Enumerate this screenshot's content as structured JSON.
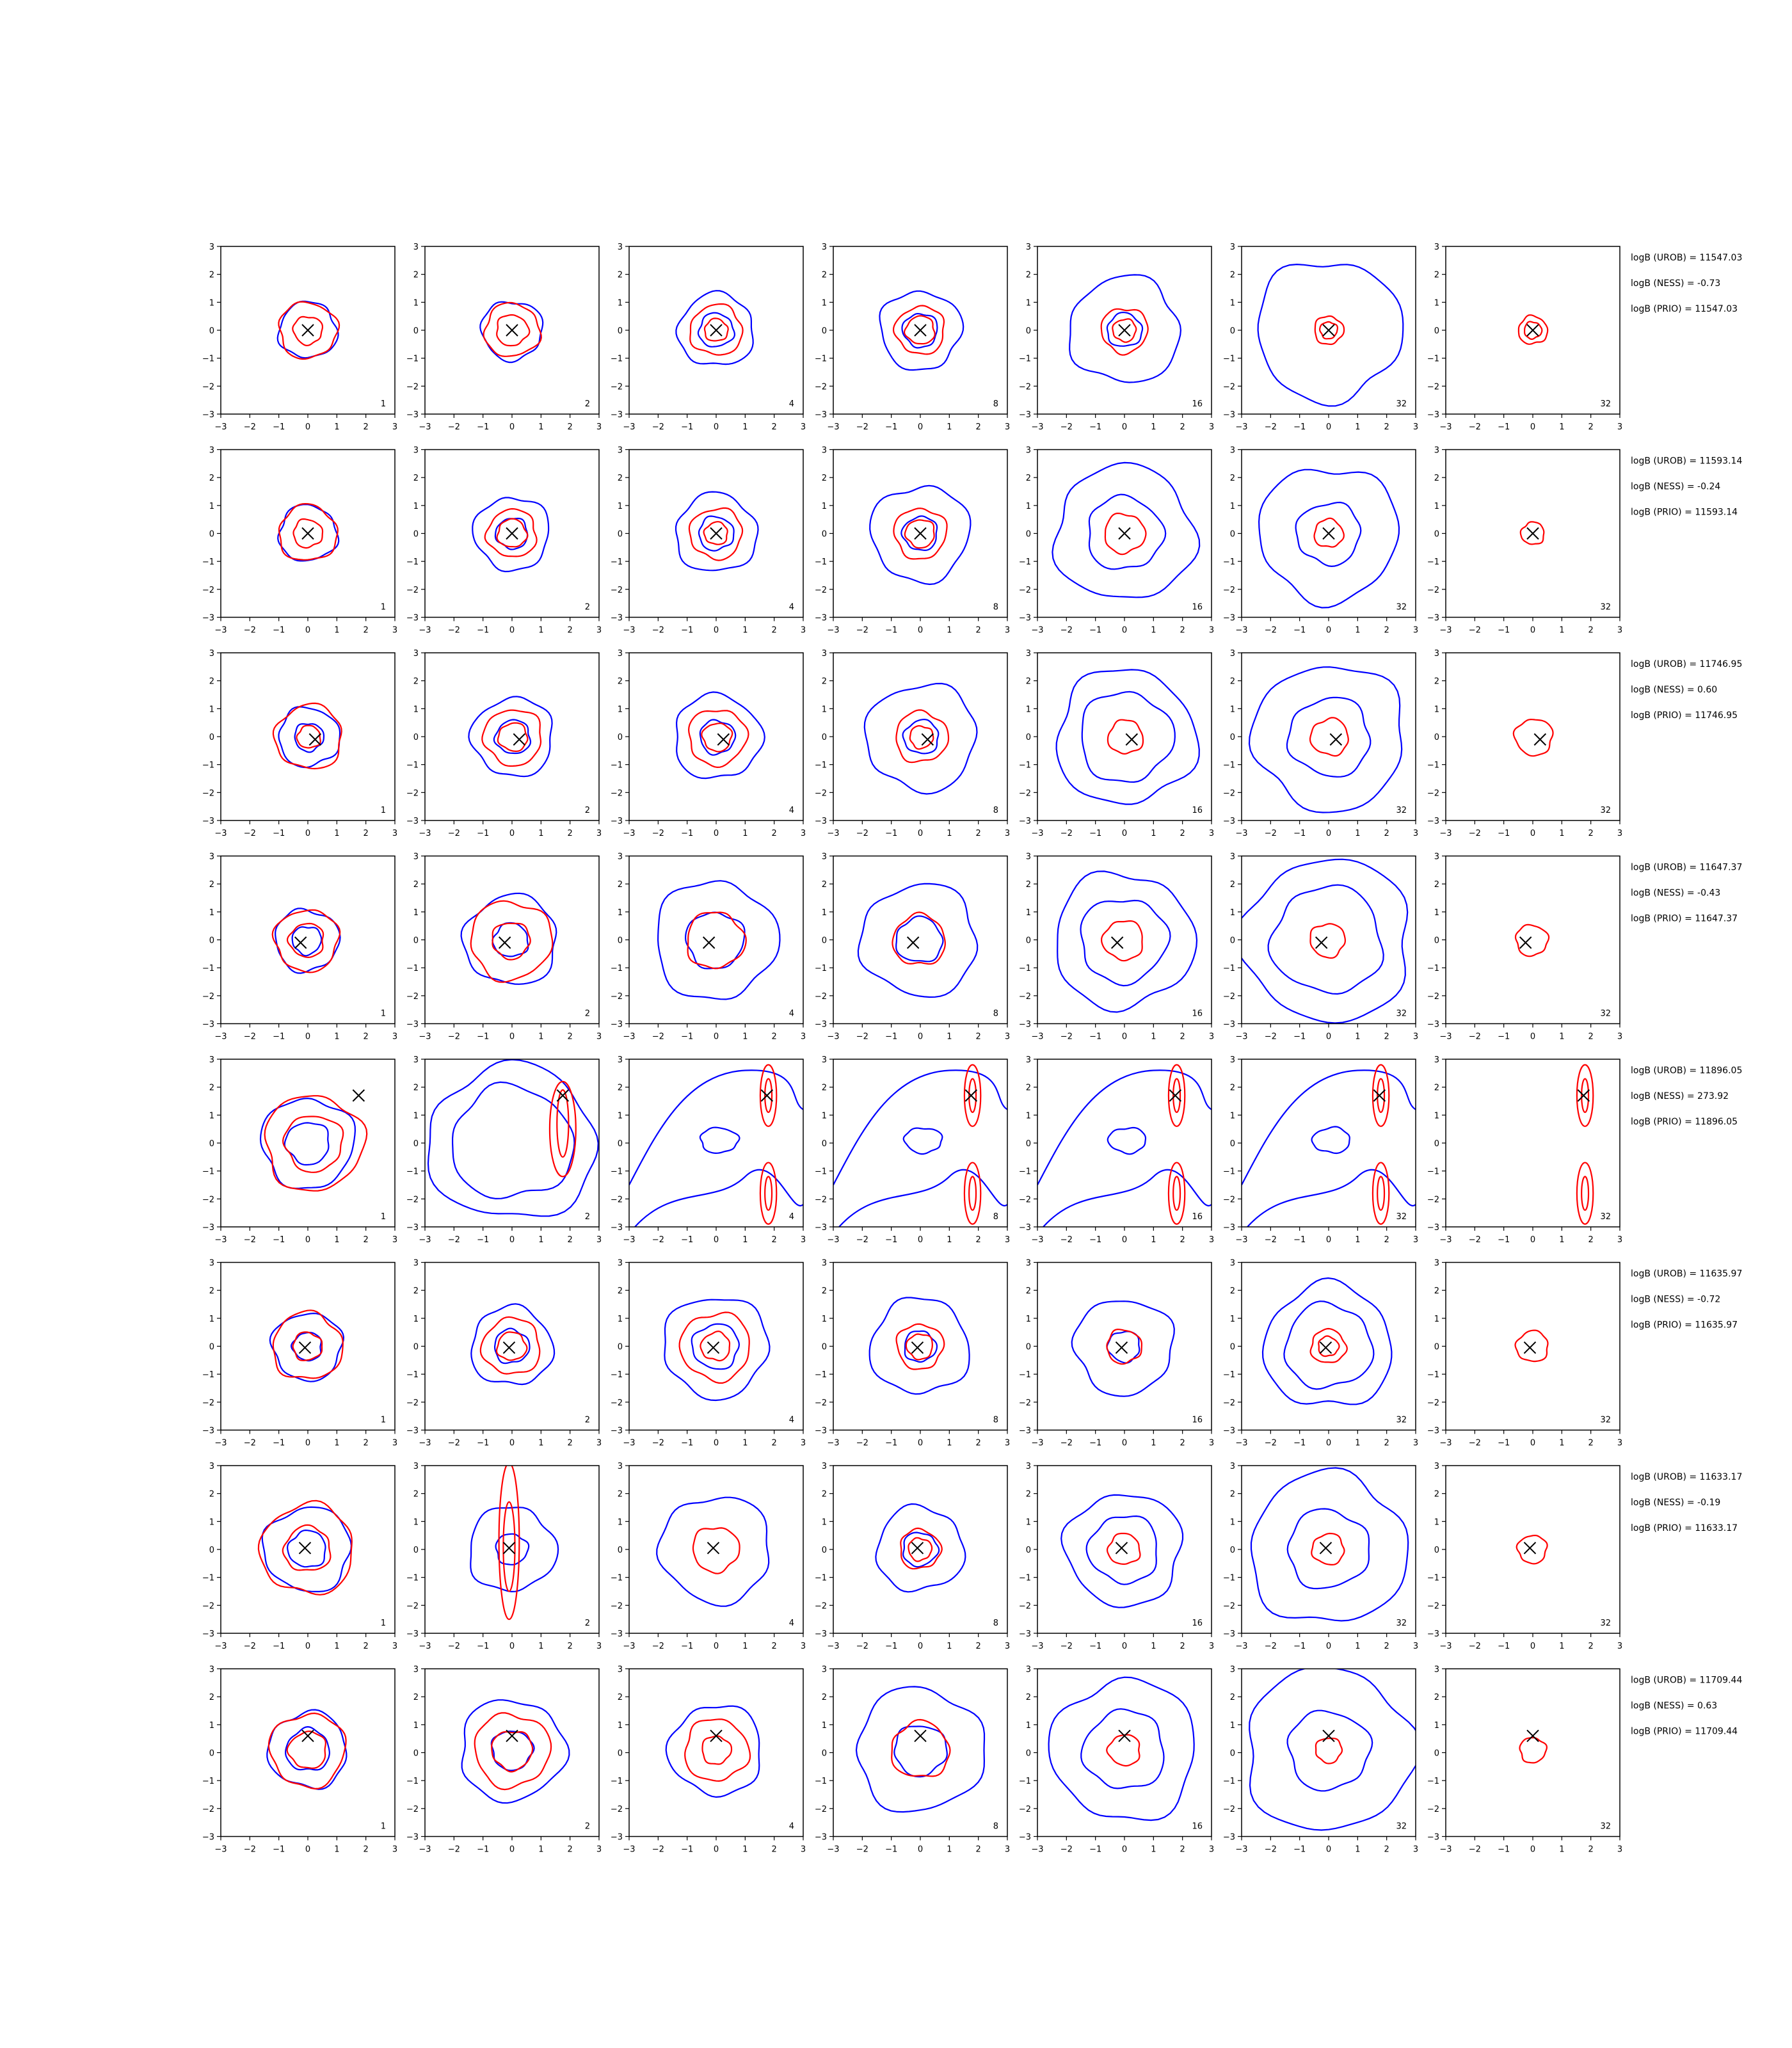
{
  "figure": {
    "nrows": 8,
    "ncols": 7,
    "xlim": [
      -3,
      3
    ],
    "ylim": [
      -3,
      3
    ],
    "ticks": [
      "−3",
      "−2",
      "−1",
      "0",
      "1",
      "2",
      "3"
    ],
    "panel_labels": [
      "1",
      "2",
      "4",
      "8",
      "16",
      "32",
      "32"
    ],
    "colors": {
      "contour_a": "#0000ff",
      "contour_b": "#ff0000",
      "marker": "#000000",
      "axes": "#000000"
    }
  },
  "chart_data": [
    {
      "type": "contour",
      "row": 1,
      "marker_xy": [
        0.0,
        0.0
      ],
      "annotations": [
        "logB (UROB) = 11547.03",
        "logB (NESS) = -0.73",
        "logB (PRIO) = 11547.03"
      ],
      "blue_radii": [
        [
          1.0
        ],
        [
          1.05
        ],
        [
          1.3,
          0.6
        ],
        [
          1.4,
          0.6
        ],
        [
          1.9,
          0.6
        ],
        [
          2.5
        ],
        []
      ],
      "red_radii": [
        [
          1.0,
          0.5
        ],
        [
          0.95,
          0.55
        ],
        [
          0.9,
          0.4
        ],
        [
          0.85,
          0.5
        ],
        [
          0.8,
          0.4
        ],
        [
          0.5,
          0.3
        ],
        [
          0.5,
          0.3
        ]
      ]
    },
    {
      "type": "contour",
      "row": 2,
      "marker_xy": [
        0.0,
        0.0
      ],
      "annotations": [
        "logB (UROB) = 11593.14",
        "logB (NESS) = -0.24",
        "logB (PRIO) = 11593.14"
      ],
      "blue_radii": [
        [
          1.0
        ],
        [
          1.3,
          0.55
        ],
        [
          1.4,
          0.6
        ],
        [
          1.7,
          0.6
        ],
        [
          2.4,
          1.3
        ],
        [
          2.4,
          1.1
        ],
        []
      ],
      "red_radii": [
        [
          1.0,
          0.5
        ],
        [
          0.85,
          0.5
        ],
        [
          0.9,
          0.4
        ],
        [
          0.9,
          0.5
        ],
        [
          0.7
        ],
        [
          0.5
        ],
        [
          0.4
        ]
      ]
    },
    {
      "type": "contour",
      "row": 3,
      "marker_xy": [
        0.25,
        -0.1
      ],
      "annotations": [
        "logB (UROB) = 11746.95",
        "logB (NESS) = 0.60",
        "logB (PRIO) = 11746.95"
      ],
      "blue_radii": [
        [
          1.05,
          0.5
        ],
        [
          1.4,
          0.6
        ],
        [
          1.5,
          0.6
        ],
        [
          1.9,
          0.6
        ],
        [
          2.4,
          1.6
        ],
        [
          2.6,
          1.4
        ],
        []
      ],
      "red_radii": [
        [
          1.15,
          0.4
        ],
        [
          1.0,
          0.5
        ],
        [
          1.0,
          0.5
        ],
        [
          0.9,
          0.4
        ],
        [
          0.6
        ],
        [
          0.65
        ],
        [
          0.65
        ]
      ]
    },
    {
      "type": "contour",
      "row": 4,
      "marker_xy": [
        -0.25,
        -0.1
      ],
      "annotations": [
        "logB (UROB) = 11647.37",
        "logB (NESS) = -0.43",
        "logB (PRIO) = 11647.37"
      ],
      "blue_radii": [
        [
          1.1,
          0.5
        ],
        [
          1.6,
          0.6
        ],
        [
          2.1,
          1.0
        ],
        [
          2.0,
          0.8
        ],
        [
          2.4,
          1.5
        ],
        [
          2.9,
          1.9
        ],
        []
      ],
      "red_radii": [
        [
          1.1,
          0.6
        ],
        [
          1.4,
          0.65
        ],
        [
          1.0
        ],
        [
          0.9
        ],
        [
          0.7
        ],
        [
          0.6
        ],
        [
          0.55
        ]
      ]
    },
    {
      "type": "contour",
      "row": 5,
      "marker_xy": [
        1.75,
        1.7
      ],
      "annotations": [
        "logB (UROB) = 11896.05",
        "logB (NESS) = 273.92",
        "logB (PRIO) = 11896.05"
      ],
      "blue_radii": [
        [
          1.6,
          0.75
        ],
        [
          2.9,
          2.1
        ],
        [],
        [],
        [],
        [],
        []
      ],
      "red_radii": [
        [
          1.7,
          1.0
        ],
        [],
        [],
        [],
        [],
        [],
        []
      ]
    },
    {
      "type": "contour",
      "row": 6,
      "marker_xy": [
        -0.1,
        -0.05
      ],
      "annotations": [
        "logB (UROB) = 11635.97",
        "logB (NESS) = -0.72",
        "logB (PRIO) = 11635.97"
      ],
      "blue_radii": [
        [
          1.2,
          0.5
        ],
        [
          1.4,
          0.6
        ],
        [
          1.8,
          0.8
        ],
        [
          1.7,
          0.55
        ],
        [
          1.7,
          0.55
        ],
        [
          2.2,
          1.5
        ],
        []
      ],
      "red_radii": [
        [
          1.2,
          0.5
        ],
        [
          1.0,
          0.5
        ],
        [
          1.2,
          0.5
        ],
        [
          0.8,
          0.45
        ],
        [
          0.6
        ],
        [
          0.6,
          0.35
        ],
        [
          0.55
        ]
      ]
    },
    {
      "type": "contour",
      "row": 7,
      "marker_xy": [
        -0.1,
        0.05
      ],
      "annotations": [
        "logB (UROB) = 11633.17",
        "logB (NESS) = -0.19",
        "logB (PRIO) = 11633.17"
      ],
      "blue_radii": [
        [
          1.5,
          0.65
        ],
        [
          1.5,
          0.55
        ],
        [
          1.9
        ],
        [
          1.5,
          0.6
        ],
        [
          2.0,
          1.2
        ],
        [
          2.7,
          1.4
        ],
        []
      ],
      "red_radii": [
        [
          1.6,
          0.8
        ],
        [],
        [
          0.8
        ],
        [
          0.7,
          0.4
        ],
        [
          0.55
        ],
        [
          0.55
        ],
        [
          0.5
        ]
      ]
    },
    {
      "type": "contour",
      "row": 8,
      "marker_xy": [
        0.0,
        0.6
      ],
      "annotations": [
        "logB (UROB) = 11709.44",
        "logB (NESS) = 0.63",
        "logB (PRIO) = 11709.44"
      ],
      "blue_radii": [
        [
          1.35,
          0.75
        ],
        [
          1.8,
          0.7
        ],
        [
          1.6
        ],
        [
          2.2,
          0.9
        ],
        [
          2.5,
          1.4
        ],
        [
          2.9,
          1.4
        ],
        []
      ],
      "red_radii": [
        [
          1.3,
          0.65
        ],
        [
          1.3,
          0.7
        ],
        [
          1.1,
          0.5
        ],
        [
          1.0
        ],
        [
          0.55
        ],
        [
          0.45
        ],
        [
          0.45
        ]
      ]
    }
  ]
}
